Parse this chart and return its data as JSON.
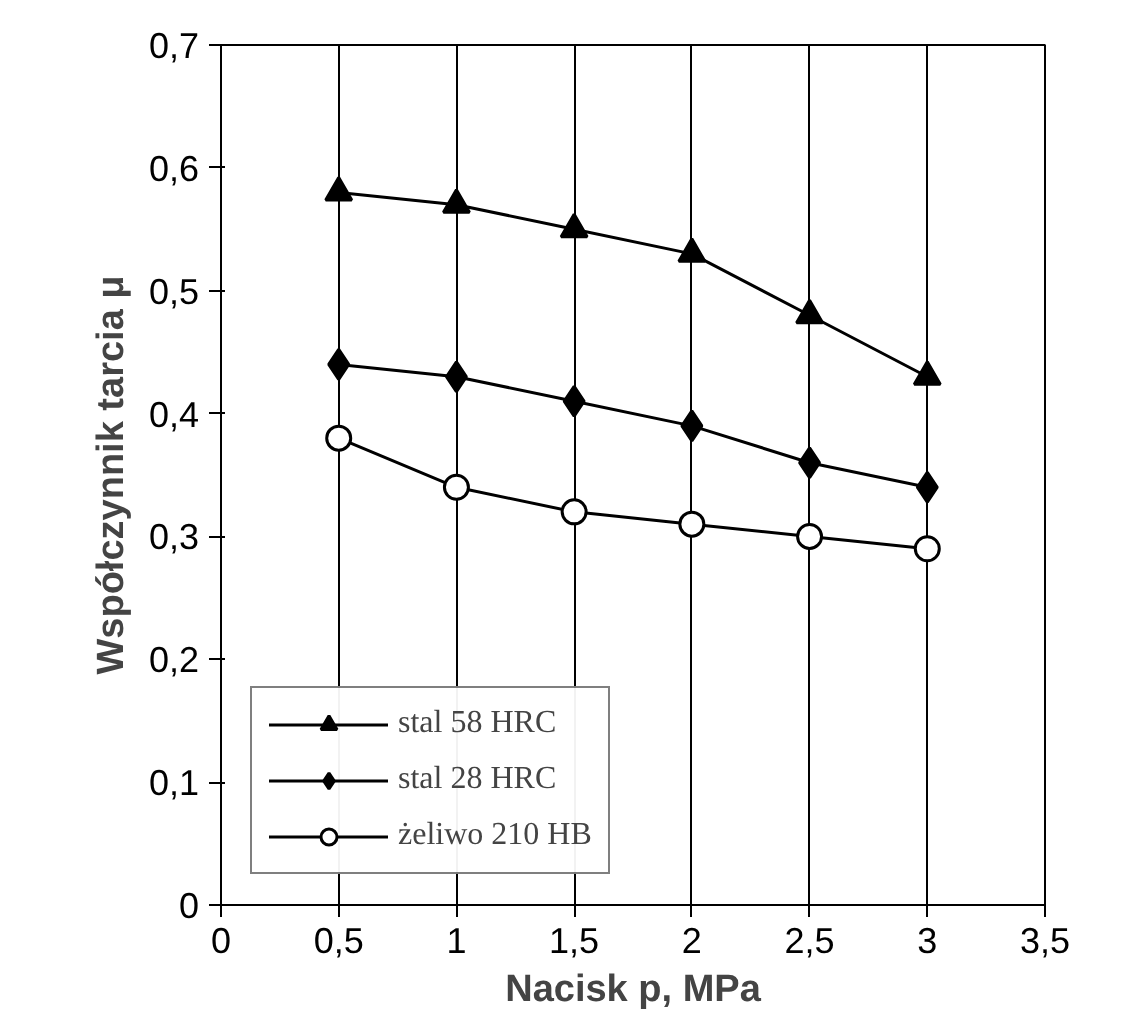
{
  "chart_data": {
    "type": "line",
    "xlabel": "Nacisk p, MPa",
    "ylabel": "Współczynnik tarcia μ",
    "xlim": [
      0,
      3.5
    ],
    "ylim": [
      0,
      0.7
    ],
    "xticks": [
      0,
      {
        "value": 0.5,
        "label": "0,5"
      },
      1,
      {
        "value": 1.5,
        "label": "1,5"
      },
      2,
      {
        "value": 2.5,
        "label": "2,5"
      },
      3,
      {
        "value": 3.5,
        "label": "3,5"
      }
    ],
    "yticks": [
      0,
      {
        "value": 0.1,
        "label": "0,1"
      },
      {
        "value": 0.2,
        "label": "0,2"
      },
      {
        "value": 0.3,
        "label": "0,3"
      },
      {
        "value": 0.4,
        "label": "0,4"
      },
      {
        "value": 0.5,
        "label": "0,5"
      },
      {
        "value": 0.6,
        "label": "0,6"
      },
      {
        "value": 0.7,
        "label": "0,7"
      }
    ],
    "x": [
      0.5,
      1,
      1.5,
      2,
      2.5,
      3
    ],
    "grid": "x",
    "legend": "bottom left",
    "line_style": "solid",
    "series": [
      {
        "name": "stal 58 HRC",
        "color": "#000000",
        "marker": "triangle",
        "values": [
          0.58,
          0.57,
          0.55,
          0.53,
          0.48,
          0.43
        ]
      },
      {
        "name": "stal 28 HRC",
        "color": "#000000",
        "marker": "diamond",
        "values": [
          0.44,
          0.43,
          0.41,
          0.39,
          0.36,
          0.34
        ]
      },
      {
        "name": "żeliwo 210 HB",
        "color": "#000000",
        "marker": "circle",
        "values": [
          0.38,
          0.34,
          0.32,
          0.31,
          0.3,
          0.29
        ]
      }
    ]
  }
}
